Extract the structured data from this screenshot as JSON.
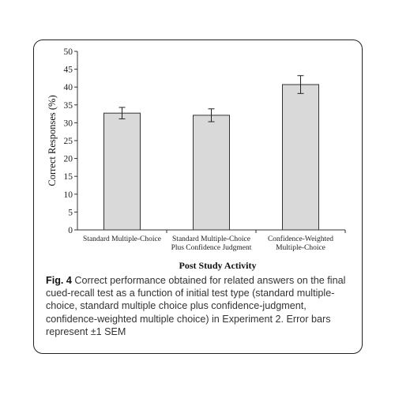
{
  "chart_data": {
    "type": "bar",
    "categories": [
      [
        "Standard Multiple-Choice"
      ],
      [
        "Standard Multiple-Choice",
        "Plus Confidence Judgment"
      ],
      [
        "Confidence-Weighted",
        "Multiple-Choice"
      ]
    ],
    "values": [
      32.7,
      32.1,
      40.7
    ],
    "error": [
      1.6,
      1.8,
      2.5
    ],
    "xlabel": "Post Study Activity",
    "ylabel": "Correct Responses (%)",
    "ylim": [
      0,
      50
    ],
    "yticks": [
      0,
      5,
      10,
      15,
      20,
      25,
      30,
      35,
      40,
      45,
      50
    ],
    "grid": false,
    "bar_color": "#d9d9d9",
    "bar_edge": "#333333"
  },
  "caption": {
    "label": "Fig. 4",
    "text": " Correct performance obtained for related answers on the final cued-recall test as a function of initial test type (standard multiple-choice, standard multiple choice plus confidence-judgment, confidence-weighted multiple choice) in Experiment 2. Error bars represent ±1 SEM"
  }
}
